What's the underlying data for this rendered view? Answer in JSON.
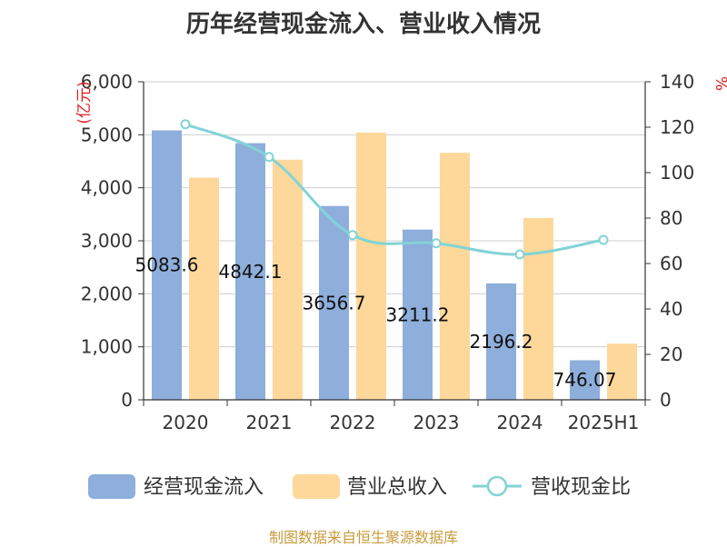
{
  "title": "历年经营现金流入、营业收入情况",
  "source": "制图数据来自恒生聚源数据库",
  "chart_data": {
    "type": "bar",
    "categories": [
      "2020",
      "2021",
      "2022",
      "2023",
      "2024",
      "2025H1"
    ],
    "series": [
      {
        "name": "经营现金流入",
        "type": "bar",
        "axis": "left",
        "color": "#8eaedb",
        "values": [
          5083.6,
          4842.1,
          3656.7,
          3211.2,
          2196.2,
          746.07
        ],
        "labels": [
          "5083.6",
          "4842.1",
          "3656.7",
          "3211.2",
          "2196.2",
          "746.07"
        ]
      },
      {
        "name": "营业总收入",
        "type": "bar",
        "axis": "left",
        "color": "#fdd89a",
        "values": [
          4190,
          4530,
          5040,
          4660,
          3430,
          1060
        ]
      },
      {
        "name": "营收现金比",
        "type": "line",
        "axis": "right",
        "color": "#82d3d6",
        "values": [
          121.3,
          106.9,
          72.5,
          68.9,
          64.0,
          70.4
        ]
      }
    ],
    "y_left": {
      "unit": "亿元",
      "ylim": [
        0,
        6000
      ],
      "ticks": [
        "0",
        "1,000",
        "2,000",
        "3,000",
        "4,000",
        "5,000",
        "6,000"
      ]
    },
    "y_right": {
      "unit": "%",
      "ylim": [
        0,
        140
      ],
      "ticks": [
        "0",
        "20",
        "40",
        "60",
        "80",
        "100",
        "120",
        "140"
      ]
    },
    "grid": true,
    "legend": "bottom"
  }
}
